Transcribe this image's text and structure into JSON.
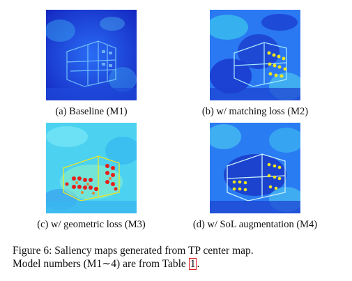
{
  "panels": [
    {
      "label": "(a) Baseline (M1)",
      "variant": "baseline"
    },
    {
      "label": "(b) w/ matching loss (M2)",
      "variant": "matching"
    },
    {
      "label": "(c) w/ geometric loss (M3)",
      "variant": "geometric"
    },
    {
      "label": "(d) w/ SoL augmentation (M4)",
      "variant": "sol"
    }
  ],
  "caption": {
    "line1": "Figure 6: Saliency maps generated from TP center map.",
    "line2_prefix": "Model numbers (M1",
    "line2_tilde": "∼",
    "line2_mid": "4) are from Table ",
    "table_ref": "1",
    "line2_suffix": "."
  },
  "colors": {
    "deep_blue": "#1424c8",
    "blue": "#1e5af0",
    "cyan": "#38c8f0",
    "yellow": "#f0e61e",
    "red": "#e6201a",
    "ref_box": "#e01e1e"
  }
}
